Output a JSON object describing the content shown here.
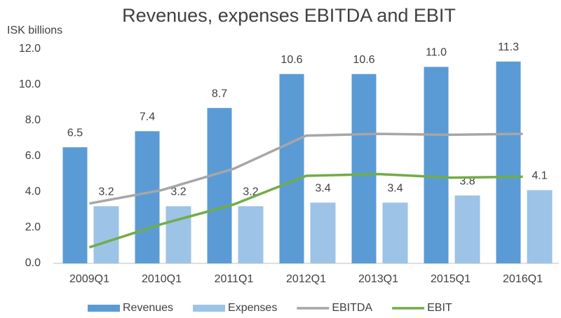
{
  "chart_data": {
    "type": "bar_line",
    "title": "Revenues, expenses EBITDA and EBIT",
    "y_axis_label": "ISK billions",
    "categories": [
      "2009Q1",
      "2010Q1",
      "2011Q1",
      "2012Q1",
      "2013Q1",
      "2015Q1",
      "2016Q1"
    ],
    "series": [
      {
        "name": "Revenues",
        "kind": "bar",
        "color": "#5b9bd5",
        "values": [
          6.5,
          7.4,
          8.7,
          10.6,
          10.6,
          11.0,
          11.3
        ],
        "value_labels": [
          "6.5",
          "7.4",
          "8.7",
          "10.6",
          "10.6",
          "11.0",
          "11.3"
        ]
      },
      {
        "name": "Expenses",
        "kind": "bar",
        "color": "#9dc3e6",
        "values": [
          3.2,
          3.2,
          3.2,
          3.4,
          3.4,
          3.8,
          4.1
        ],
        "value_labels": [
          "3.2",
          "3.2",
          "3.2",
          "3.4",
          "3.4",
          "3.8",
          "4.1"
        ]
      },
      {
        "name": "EBITDA",
        "kind": "line",
        "color": "#a6a6a6",
        "values": [
          3.35,
          4.1,
          5.3,
          7.15,
          7.25,
          7.2,
          7.25
        ]
      },
      {
        "name": "EBIT",
        "kind": "line",
        "color": "#70ad47",
        "values": [
          0.9,
          2.2,
          3.3,
          4.9,
          5.0,
          4.8,
          4.85
        ]
      }
    ],
    "ylim": [
      0,
      12
    ],
    "yticks": [
      {
        "value": 0,
        "label": "0.0"
      },
      {
        "value": 2,
        "label": "2.0"
      },
      {
        "value": 4,
        "label": "4.0"
      },
      {
        "value": 6,
        "label": "6.0"
      },
      {
        "value": 8,
        "label": "8.0"
      },
      {
        "value": 10,
        "label": "10.0"
      },
      {
        "value": 12,
        "label": "12.0"
      }
    ],
    "legend": "bottom"
  }
}
